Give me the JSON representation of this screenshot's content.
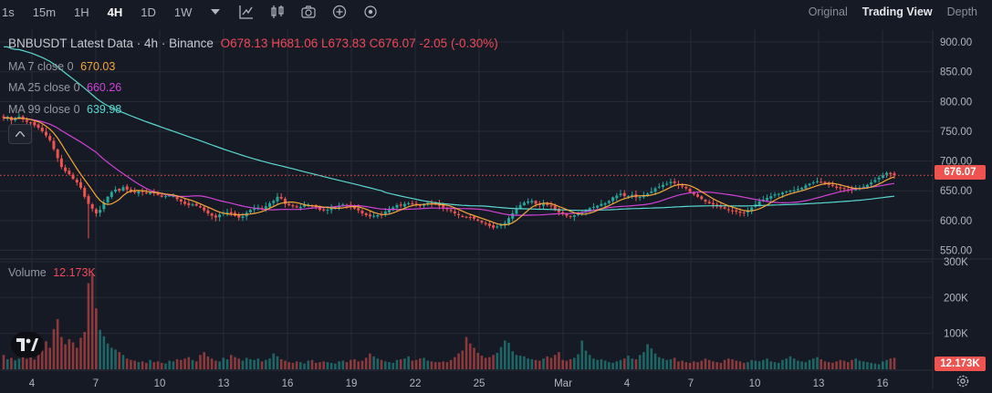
{
  "toolbar": {
    "timeframes": [
      "1s",
      "15m",
      "1H",
      "4H",
      "1D",
      "1W"
    ],
    "active_timeframe": "4H",
    "icons": [
      "chevron-down-icon",
      "line-tool-icon",
      "candles-icon",
      "camera-icon",
      "add-indicator-icon",
      "replay-icon"
    ],
    "views": [
      "Original",
      "Trading View",
      "Depth"
    ],
    "active_view": "Trading View"
  },
  "legend": {
    "title": "BNBUSDT Latest Data · 4h · Binance",
    "ohlc": {
      "o_label": "O",
      "open": "678.13",
      "h_label": "H",
      "high": "681.06",
      "l_label": "L",
      "low": "673.83",
      "c_label": "C",
      "close": "676.07",
      "change": "-2.05",
      "change_pct": "(-0.30%)"
    },
    "ma7": {
      "label": "MA 7 close 0",
      "value": "670.03",
      "color": "#f6a73b"
    },
    "ma25": {
      "label": "MA 25 close 0",
      "value": "660.26",
      "color": "#d042d6"
    },
    "ma99": {
      "label": "MA 99 close 0",
      "value": "639.98",
      "color": "#5ad8d0"
    },
    "volume": {
      "label": "Volume",
      "value": "12.173K"
    }
  },
  "colors": {
    "up": "#26a69a",
    "down": "#ef5350",
    "background": "#161a25",
    "grid": "#262a35",
    "last_price_line": "#ef5350"
  },
  "chart_data": {
    "type": "candlestick",
    "price_axis": {
      "ticks": [
        900,
        850,
        800,
        750,
        700,
        650,
        600,
        550
      ],
      "tick_labels": [
        "900.00",
        "850.00",
        "800.00",
        "750.00",
        "700.00",
        "650.00",
        "600.00",
        "550.00"
      ],
      "range": [
        537,
        920
      ]
    },
    "volume_axis": {
      "ticks": [
        300,
        200,
        100
      ],
      "tick_labels": [
        "300K",
        "200K",
        "100K"
      ],
      "range": [
        0,
        305
      ]
    },
    "x_ticks": [
      "4",
      "7",
      "10",
      "13",
      "16",
      "19",
      "22",
      "25",
      "Mar",
      "4",
      "7",
      "10",
      "13",
      "16"
    ],
    "last_price": "676.07",
    "last_volume": "12.173K",
    "close_series": [
      772,
      774,
      768,
      771,
      775,
      770,
      766,
      764,
      760,
      756,
      750,
      743,
      735,
      720,
      705,
      690,
      683,
      678,
      670,
      664,
      655,
      640,
      628,
      620,
      612,
      618,
      630,
      640,
      648,
      652,
      650,
      656,
      652,
      648,
      647,
      649,
      648,
      646,
      647,
      647,
      643,
      640,
      641,
      642,
      641,
      636,
      632,
      628,
      626,
      627,
      625,
      622,
      617,
      612,
      608,
      605,
      610,
      613,
      614,
      612,
      608,
      605,
      607,
      613,
      618,
      620,
      622,
      620,
      624,
      629,
      633,
      640,
      637,
      628,
      626,
      624,
      622,
      623,
      626,
      627,
      625,
      623,
      618,
      617,
      618,
      621,
      623,
      625,
      627,
      626,
      623,
      620,
      617,
      612,
      609,
      607,
      608,
      609,
      610,
      615,
      618,
      622,
      626,
      625,
      628,
      629,
      628,
      627,
      625,
      628,
      630,
      629,
      627,
      625,
      622,
      619,
      616,
      612,
      609,
      607,
      606,
      605,
      603,
      600,
      597,
      594,
      591,
      588,
      590,
      593,
      596,
      604,
      612,
      620,
      626,
      630,
      632,
      633,
      628,
      626,
      628,
      626,
      624,
      619,
      614,
      611,
      608,
      607,
      609,
      612,
      614,
      616,
      621,
      623,
      625,
      628,
      629,
      633,
      639,
      642,
      645,
      641,
      641,
      643,
      639,
      640,
      643,
      645,
      649,
      654,
      657,
      660,
      662,
      665,
      663,
      660,
      657,
      654,
      648,
      644,
      640,
      636,
      632,
      629,
      627,
      625,
      623,
      620,
      618,
      616,
      615,
      613,
      613,
      617,
      622,
      627,
      632,
      635,
      638,
      641,
      644,
      645,
      647,
      649,
      650,
      651,
      653,
      655,
      659,
      662,
      664,
      666,
      664,
      663,
      660,
      658,
      655,
      654,
      653,
      652,
      652,
      654,
      655,
      657,
      660,
      664,
      668,
      672,
      676,
      680,
      678,
      676
    ],
    "volume_series": [
      40,
      28,
      32,
      25,
      30,
      36,
      29,
      33,
      27,
      44,
      52,
      78,
      60,
      112,
      140,
      90,
      70,
      84,
      75,
      60,
      88,
      104,
      240,
      266,
      170,
      110,
      92,
      72,
      60,
      55,
      48,
      40,
      30,
      26,
      24,
      20,
      22,
      18,
      26,
      20,
      22,
      18,
      16,
      24,
      22,
      28,
      26,
      30,
      34,
      26,
      22,
      40,
      48,
      36,
      30,
      24,
      22,
      32,
      28,
      40,
      34,
      30,
      24,
      32,
      28,
      26,
      30,
      22,
      26,
      30,
      44,
      36,
      28,
      24,
      20,
      18,
      22,
      20,
      16,
      24,
      26,
      18,
      20,
      22,
      20,
      18,
      16,
      22,
      24,
      20,
      26,
      28,
      22,
      24,
      32,
      44,
      36,
      30,
      26,
      22,
      20,
      18,
      26,
      28,
      30,
      36,
      24,
      26,
      30,
      32,
      24,
      22,
      20,
      20,
      22,
      20,
      26,
      34,
      44,
      52,
      90,
      72,
      60,
      46,
      38,
      32,
      34,
      40,
      46,
      62,
      80,
      74,
      50,
      40,
      38,
      36,
      30,
      28,
      26,
      24,
      30,
      36,
      32,
      40,
      48,
      26,
      24,
      28,
      32,
      42,
      80,
      52,
      40,
      30,
      26,
      28,
      24,
      20,
      18,
      22,
      26,
      30,
      38,
      30,
      28,
      40,
      48,
      70,
      58,
      44,
      34,
      30,
      26,
      28,
      32,
      22,
      24,
      20,
      18,
      22,
      20,
      24,
      30,
      26,
      22,
      20,
      18,
      26,
      30,
      28,
      24,
      22,
      18,
      20,
      26,
      24,
      22,
      26,
      30,
      22,
      20,
      18,
      26,
      30,
      36,
      30,
      24,
      22,
      20,
      26,
      30,
      34,
      28,
      22,
      20,
      18,
      22,
      26,
      24,
      20,
      26,
      30,
      24,
      22,
      20,
      18,
      16,
      14,
      22,
      26,
      30,
      32,
      34,
      24,
      18,
      12
    ]
  }
}
